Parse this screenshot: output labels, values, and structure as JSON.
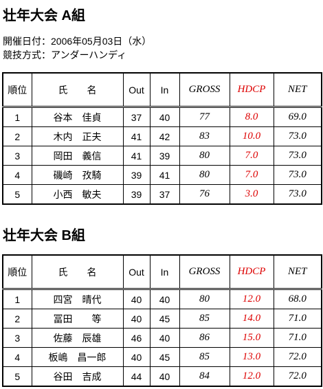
{
  "sections": [
    {
      "title": "壮年大会 A組",
      "info": [
        "開催日付：2006年05月03日（水）",
        "競技方式：アンダーハンディ"
      ],
      "table": {
        "header": [
          "順位",
          "氏　　名",
          "Out",
          "In",
          "GROSS",
          "HDCP",
          "NET"
        ],
        "rows": [
          [
            "1",
            "谷本　佳貞",
            "37",
            "40",
            "77",
            "8.0",
            "69.0"
          ],
          [
            "2",
            "木内　正夫",
            "41",
            "42",
            "83",
            "10.0",
            "73.0"
          ],
          [
            "3",
            "岡田　義信",
            "41",
            "39",
            "80",
            "7.0",
            "73.0"
          ],
          [
            "4",
            "磯崎　孜騎",
            "39",
            "41",
            "80",
            "7.0",
            "73.0"
          ],
          [
            "5",
            "小西　敏夫",
            "39",
            "37",
            "76",
            "3.0",
            "73.0"
          ]
        ]
      }
    },
    {
      "title": "壮年大会 B組",
      "table": {
        "header": [
          "順位",
          "氏　　名",
          "Out",
          "In",
          "GROSS",
          "HDCP",
          "NET"
        ],
        "rows": [
          [
            "1",
            "四宮　晴代",
            "40",
            "40",
            "80",
            "12.0",
            "68.0"
          ],
          [
            "2",
            "冨田　　等",
            "40",
            "45",
            "85",
            "14.0",
            "71.0"
          ],
          [
            "3",
            "佐藤　辰雄",
            "46",
            "40",
            "86",
            "15.0",
            "71.0"
          ],
          [
            "4",
            "板嶋　昌一郎",
            "40",
            "45",
            "85",
            "13.0",
            "72.0"
          ],
          [
            "5",
            "谷田　吉成",
            "44",
            "40",
            "84",
            "12.0",
            "72.0"
          ]
        ]
      }
    }
  ]
}
